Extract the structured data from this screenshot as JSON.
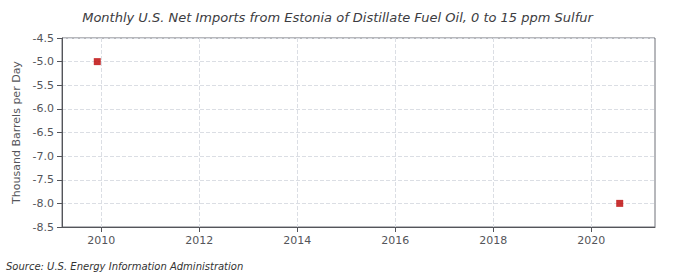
{
  "chart_data": {
    "type": "scatter",
    "title": "Monthly U.S. Net Imports from Estonia of Distillate Fuel Oil, 0 to 15 ppm Sulfur",
    "ylabel": "Thousand Barrels per Day",
    "annotations": [
      "Source: U.S. Energy Information Administration"
    ],
    "x": [
      2009.92,
      2020.58
    ],
    "values": [
      -5.0,
      -8.0
    ],
    "color": "#BB0000",
    "marker": "square",
    "xlim": [
      2009.2,
      2021.3
    ],
    "xticks": [
      2010,
      2012,
      2014,
      2016,
      2018,
      2020
    ],
    "ylim": [
      -8.5,
      -4.5
    ],
    "yticks": [
      -8.5,
      {
        "value": -8.0,
        "label": "-8.0"
      },
      -7.5,
      {
        "value": -7.0,
        "label": "-7.0"
      },
      -6.5,
      {
        "value": -6.0,
        "label": "-6.0"
      },
      -5.5,
      {
        "value": -5.0,
        "label": "-5.0"
      },
      -4.5
    ],
    "grid": true
  }
}
